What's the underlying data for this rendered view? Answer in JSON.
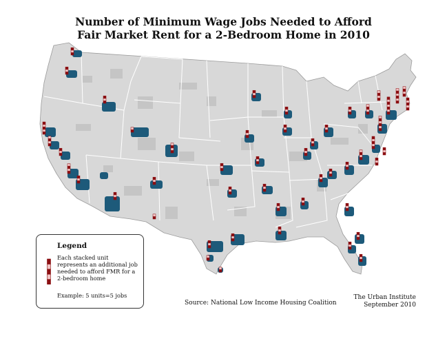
{
  "title_line1": "Number of Minimum Wage Jobs Needed to Afford",
  "title_line2": "Fair Market Rent for a 2-Bedroom Home in 2010",
  "legend": {
    "title": "Legend",
    "desc_1": "Each stacked unit",
    "desc_2": "represents an additional job",
    "desc_3": "needed to afford FMR for a",
    "desc_4": "2-bedroom home",
    "example": "Example: 5 units=5 jobs",
    "example_units": 5
  },
  "source": "Source: National Low Income Housing Coalition",
  "credit_line1": "The Urban Institute",
  "credit_line2": "September 2010",
  "colors": {
    "land": "#d8d8d8",
    "county_shade": "#bdbdbd",
    "state_border": "#ffffff",
    "metro": "#1d5a7a",
    "bar_dark": "#8b0f12",
    "bar_light": "#f2c4c4"
  },
  "icons": [
    "stacked-jobs-bar-icon"
  ]
}
